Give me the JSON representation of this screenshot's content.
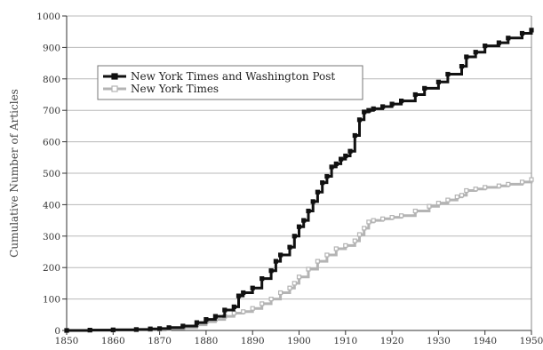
{
  "chart_data": {
    "type": "line",
    "title": "",
    "xlabel": "",
    "ylabel": "Cumulative Number of Articles",
    "xlim": [
      1850,
      1950
    ],
    "ylim": [
      0,
      1000
    ],
    "xticks": [
      1850,
      1860,
      1870,
      1880,
      1890,
      1900,
      1910,
      1920,
      1930,
      1940,
      1950
    ],
    "yticks": [
      0,
      100,
      200,
      300,
      400,
      500,
      600,
      700,
      800,
      900,
      1000
    ],
    "grid": "horizontal",
    "legend_position": "top-left",
    "series": [
      {
        "name": "New York Times and Washington Post",
        "color": "#111111",
        "marker": "filled-square",
        "x": [
          1850,
          1855,
          1860,
          1865,
          1868,
          1870,
          1872,
          1875,
          1878,
          1880,
          1882,
          1884,
          1886,
          1887,
          1888,
          1890,
          1892,
          1894,
          1895,
          1896,
          1898,
          1899,
          1900,
          1901,
          1902,
          1903,
          1904,
          1905,
          1906,
          1907,
          1908,
          1909,
          1910,
          1911,
          1912,
          1913,
          1914,
          1915,
          1916,
          1918,
          1920,
          1922,
          1925,
          1927,
          1930,
          1932,
          1935,
          1936,
          1938,
          1940,
          1943,
          1945,
          1948,
          1950
        ],
        "y": [
          0,
          1,
          2,
          3,
          5,
          6,
          9,
          14,
          25,
          35,
          45,
          65,
          75,
          110,
          120,
          135,
          165,
          190,
          220,
          240,
          265,
          300,
          330,
          350,
          380,
          410,
          440,
          470,
          490,
          520,
          530,
          545,
          555,
          570,
          620,
          670,
          695,
          700,
          705,
          712,
          720,
          730,
          750,
          770,
          790,
          815,
          840,
          870,
          885,
          905,
          915,
          930,
          945,
          955
        ]
      },
      {
        "name": "New York Times",
        "color": "#b4b4b4",
        "marker": "open-square",
        "x": [
          1850,
          1855,
          1860,
          1865,
          1868,
          1870,
          1872,
          1875,
          1878,
          1880,
          1882,
          1884,
          1886,
          1888,
          1890,
          1892,
          1894,
          1896,
          1898,
          1899,
          1900,
          1902,
          1904,
          1906,
          1908,
          1910,
          1912,
          1913,
          1914,
          1915,
          1916,
          1918,
          1920,
          1922,
          1925,
          1928,
          1930,
          1932,
          1934,
          1935,
          1936,
          1938,
          1940,
          1943,
          1945,
          1948,
          1950
        ],
        "y": [
          0,
          1,
          1,
          2,
          3,
          4,
          6,
          9,
          18,
          28,
          35,
          45,
          55,
          60,
          70,
          85,
          100,
          120,
          135,
          150,
          170,
          195,
          220,
          240,
          260,
          270,
          285,
          305,
          325,
          345,
          350,
          355,
          360,
          365,
          380,
          395,
          405,
          415,
          425,
          430,
          445,
          450,
          455,
          460,
          465,
          472,
          480
        ]
      }
    ]
  }
}
